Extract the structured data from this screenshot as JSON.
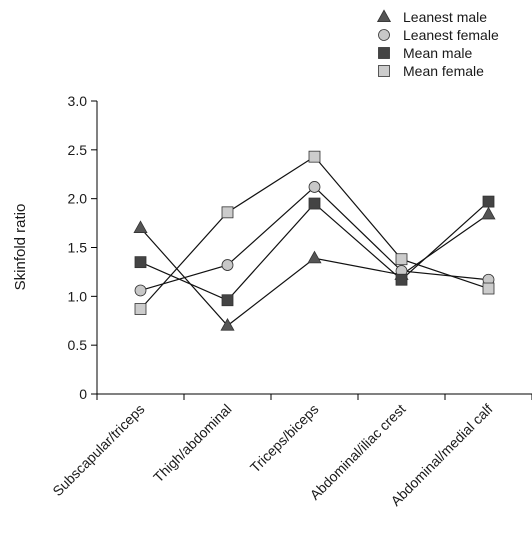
{
  "chart_data": {
    "type": "line",
    "title": "",
    "xlabel": "",
    "ylabel": "Skinfold ratio",
    "ylim": [
      0,
      3.0
    ],
    "yticks": [
      "0",
      "0.5",
      "1.0",
      "1.5",
      "2.0",
      "2.5",
      "3.0"
    ],
    "categories": [
      "Subscapular/triceps",
      "Thigh/abdominal",
      "Triceps/biceps",
      "Abdominal/iliac crest",
      "Abdominal/medial calf"
    ],
    "legend_position": "top-right",
    "grid": false,
    "series": [
      {
        "name": "Leanest male",
        "marker": "triangle",
        "color": "#555555",
        "values": [
          1.7,
          0.7,
          1.39,
          1.22,
          1.84
        ]
      },
      {
        "name": "Leanest female",
        "marker": "circle",
        "color": "#c8c8c8",
        "values": [
          1.06,
          1.32,
          2.12,
          1.26,
          1.17
        ]
      },
      {
        "name": "Mean male",
        "marker": "square",
        "color": "#444444",
        "values": [
          1.35,
          0.96,
          1.95,
          1.17,
          1.97
        ]
      },
      {
        "name": "Mean female",
        "marker": "square",
        "color": "#cccccc",
        "values": [
          0.87,
          1.86,
          2.43,
          1.38,
          1.08
        ]
      }
    ]
  }
}
